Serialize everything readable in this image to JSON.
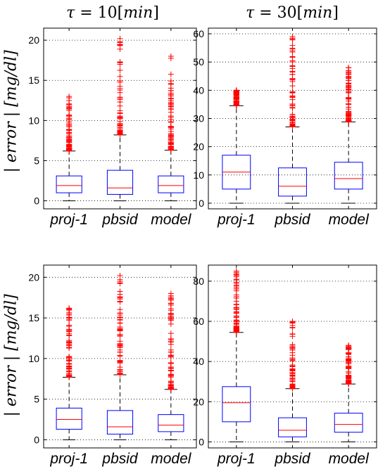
{
  "titles": {
    "col_left": {
      "symbol": "τ",
      "equals": " = 10[",
      "unit": "min",
      "close": "]"
    },
    "col_right": {
      "symbol": "τ",
      "equals": " = 30[",
      "unit": "min",
      "close": "]"
    }
  },
  "ylabels": {
    "top": "| error | [mg/dl]",
    "bottom": "| error | [mg/dl]"
  },
  "colors": {
    "box": "#0000ff",
    "median": "#ff0000",
    "outlier": "#ff0000",
    "whisker": "#000000",
    "grid": "#000000"
  },
  "chart_data": [
    {
      "type": "box",
      "categories": [
        "proj-1",
        "pbsid",
        "model"
      ],
      "ylim": [
        -1,
        21.5
      ],
      "yticks": [
        0,
        5,
        10,
        15,
        20
      ],
      "grid": true,
      "boxes": [
        {
          "q1": 1.0,
          "median": 1.9,
          "q3": 3.1,
          "whisker_low": 0,
          "whisker_high": 6.2,
          "outlier_max": 13.0
        },
        {
          "q1": 0.8,
          "median": 1.6,
          "q3": 3.8,
          "whisker_low": 0,
          "whisker_high": 8.2,
          "outlier_max": 20.2
        },
        {
          "q1": 1.0,
          "median": 1.9,
          "q3": 3.1,
          "whisker_low": 0,
          "whisker_high": 6.3,
          "outlier_max": 18.0
        }
      ]
    },
    {
      "type": "box",
      "categories": [
        "proj-1",
        "pbsid",
        "model"
      ],
      "ylim": [
        -2,
        62
      ],
      "yticks": [
        0,
        10,
        20,
        30,
        40,
        50,
        60
      ],
      "grid": true,
      "boxes": [
        {
          "q1": 5.0,
          "median": 11.0,
          "q3": 17.0,
          "whisker_low": 0,
          "whisker_high": 34.5,
          "outlier_max": 40.0
        },
        {
          "q1": 2.5,
          "median": 6.0,
          "q3": 12.5,
          "whisker_low": 0,
          "whisker_high": 27.0,
          "outlier_max": 59.0
        },
        {
          "q1": 5.0,
          "median": 8.7,
          "q3": 14.5,
          "whisker_low": 0,
          "whisker_high": 28.8,
          "outlier_max": 48.0
        }
      ]
    },
    {
      "type": "box",
      "categories": [
        "proj-1",
        "pbsid",
        "model"
      ],
      "ylim": [
        -1,
        21.5
      ],
      "yticks": [
        0,
        5,
        10,
        15,
        20
      ],
      "grid": true,
      "boxes": [
        {
          "q1": 1.3,
          "median": 2.5,
          "q3": 3.9,
          "whisker_low": 0,
          "whisker_high": 7.7,
          "outlier_max": 16.2
        },
        {
          "q1": 0.7,
          "median": 1.6,
          "q3": 3.6,
          "whisker_low": 0,
          "whisker_high": 8.0,
          "outlier_max": 20.2
        },
        {
          "q1": 1.0,
          "median": 1.8,
          "q3": 3.1,
          "whisker_low": 0,
          "whisker_high": 6.2,
          "outlier_max": 18.0
        }
      ]
    },
    {
      "type": "box",
      "categories": [
        "proj-1",
        "pbsid",
        "model"
      ],
      "ylim": [
        -3,
        88
      ],
      "yticks": [
        0,
        20,
        40,
        60,
        80
      ],
      "grid": true,
      "boxes": [
        {
          "q1": 10.0,
          "median": 19.5,
          "q3": 27.5,
          "whisker_low": 0,
          "whisker_high": 54.5,
          "outlier_max": 85.0
        },
        {
          "q1": 2.5,
          "median": 5.8,
          "q3": 12.0,
          "whisker_low": 0,
          "whisker_high": 26.5,
          "outlier_max": 60.0
        },
        {
          "q1": 4.8,
          "median": 8.7,
          "q3": 14.3,
          "whisker_low": 0,
          "whisker_high": 28.8,
          "outlier_max": 48.0
        }
      ]
    }
  ]
}
